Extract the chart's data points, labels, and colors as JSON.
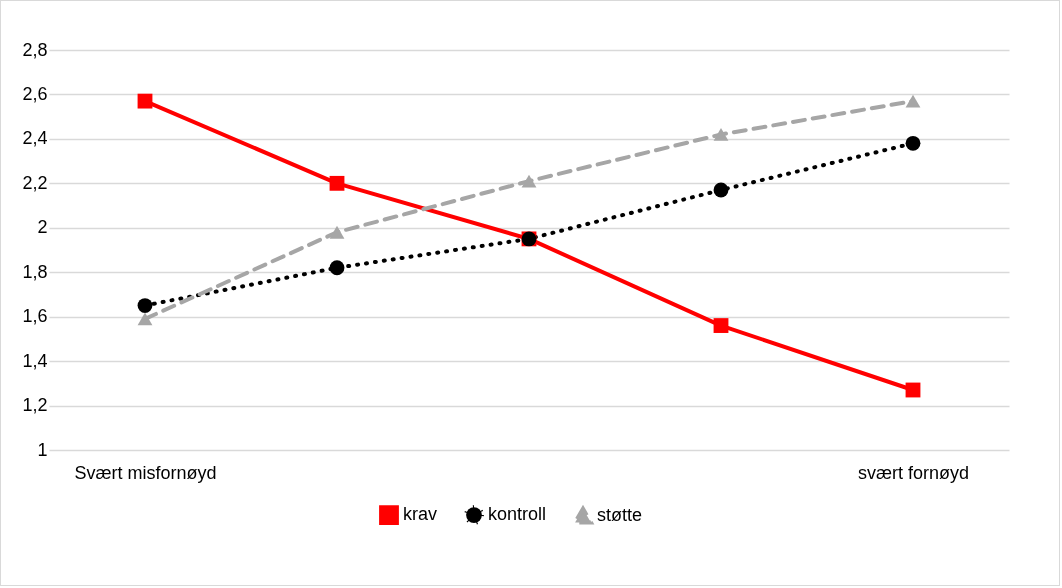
{
  "chart_data": {
    "type": "line",
    "categories": [
      "Svært misfornøyd",
      null,
      null,
      null,
      "svært fornøyd"
    ],
    "series": [
      {
        "name": "krav",
        "color": "#ff0000",
        "values": [
          2.57,
          2.2,
          1.95,
          1.56,
          1.27
        ],
        "marker": "square",
        "line_style": "solid"
      },
      {
        "name": "kontroll",
        "color": "#000000",
        "values": [
          1.65,
          1.82,
          1.95,
          2.17,
          2.38
        ],
        "marker": "circle",
        "line_style": "dotted"
      },
      {
        "name": "støtte",
        "color": "#a6a6a6",
        "values": [
          1.59,
          1.98,
          2.21,
          2.42,
          2.57
        ],
        "marker": "triangle",
        "line_style": "dashed"
      }
    ],
    "ylim": [
      1,
      2.8
    ],
    "yticks": [
      1,
      {
        "value": 1.2,
        "label": "1,2"
      },
      {
        "value": 1.4,
        "label": "1,4"
      },
      {
        "value": 1.6,
        "label": "1,6"
      },
      {
        "value": 1.8,
        "label": "1,8"
      },
      2,
      {
        "value": 2.2,
        "label": "2,2"
      },
      {
        "value": 2.4,
        "label": "2,4"
      },
      {
        "value": 2.6,
        "label": "2,6"
      },
      {
        "value": 2.8,
        "label": "2,8"
      }
    ],
    "grid": "y",
    "legend": "bottom"
  }
}
